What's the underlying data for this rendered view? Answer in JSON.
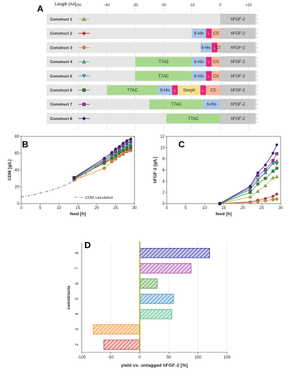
{
  "panels": {
    "A": {
      "letter": "A",
      "axis_label": "Length [AA]",
      "ticks": [
        "-50",
        "-40",
        "-30",
        "-20",
        "-10",
        "0",
        "+10"
      ],
      "constructs": [
        {
          "label": "Construct 1",
          "marker": "triangle",
          "color": "#b5b336",
          "segments": [
            {
              "text": "hFGF-2",
              "kind": "hfgf",
              "from": 0,
              "to": 11
            }
          ]
        },
        {
          "label": "Construct 2",
          "marker": "diamond",
          "color": "#c2282d",
          "segments": [
            {
              "text": "6-His",
              "kind": "his",
              "from": -10,
              "to": -5
            },
            {
              "text": "L",
              "kind": "linker",
              "from": -5,
              "to": -3
            },
            {
              "text": "CS",
              "kind": "cs",
              "from": -3,
              "to": 0
            },
            {
              "text": "hFGF-2",
              "kind": "hfgf",
              "from": 0,
              "to": 11
            }
          ]
        },
        {
          "label": "Construct 3",
          "marker": "circle",
          "color": "#e58a2d",
          "segments": [
            {
              "text": "6-His",
              "kind": "his",
              "from": -7,
              "to": -3
            },
            {
              "text": "L",
              "kind": "linker",
              "from": -3,
              "to": -1
            },
            {
              "text": "CS",
              "kind": "cs",
              "from": -1,
              "to": 0
            },
            {
              "text": "hFGF-2",
              "kind": "hfgf",
              "from": 0,
              "to": 11
            }
          ]
        },
        {
          "label": "Construct 4",
          "marker": "triangle",
          "color": "#3cb37a",
          "segments": [
            {
              "text": "T7A3",
              "kind": "t7",
              "from": -30,
              "to": -10
            },
            {
              "text": "6-His",
              "kind": "his",
              "from": -10,
              "to": -5
            },
            {
              "text": "L",
              "kind": "linker",
              "from": -5,
              "to": -3
            },
            {
              "text": "CS",
              "kind": "cs",
              "from": -3,
              "to": 0
            },
            {
              "text": "hFGF-2",
              "kind": "hfgf",
              "from": 0,
              "to": 11
            }
          ]
        },
        {
          "label": "Construct 5",
          "marker": "triangle-down",
          "color": "#2bb0b0",
          "segments": [
            {
              "text": "T7AC",
              "kind": "t7",
              "from": -30,
              "to": -10
            },
            {
              "text": "6-His",
              "kind": "his",
              "from": -10,
              "to": -5
            },
            {
              "text": "L",
              "kind": "linker",
              "from": -5,
              "to": -3
            },
            {
              "text": "CS",
              "kind": "cs",
              "from": -3,
              "to": 0
            },
            {
              "text": "hFGF-2",
              "kind": "hfgf",
              "from": 0,
              "to": 11
            }
          ]
        },
        {
          "label": "Construct 6",
          "marker": "square",
          "color": "#2e8b2e",
          "segments": [
            {
              "text": "T7AC",
              "kind": "t7",
              "from": -40,
              "to": -22
            },
            {
              "text": "6-His",
              "kind": "his",
              "from": -22,
              "to": -17
            },
            {
              "text": "L",
              "kind": "linker",
              "from": -17,
              "to": -15
            },
            {
              "text": "StrepII",
              "kind": "strep",
              "from": -15,
              "to": -7
            },
            {
              "text": "L",
              "kind": "linker",
              "from": -7,
              "to": -5
            },
            {
              "text": "CS",
              "kind": "cs",
              "from": -5,
              "to": 0
            },
            {
              "text": "hFGF-2",
              "kind": "hfgf",
              "from": 0,
              "to": 11
            }
          ]
        },
        {
          "label": "Construct 7",
          "marker": "square",
          "color": "#9b2fa0",
          "segments": [
            {
              "text": "T7AC",
              "kind": "t7",
              "from": -25,
              "to": -6
            },
            {
              "text": "6-His",
              "kind": "his",
              "from": -6,
              "to": 0
            },
            {
              "text": "hFGF-2",
              "kind": "hfgf",
              "from": 0,
              "to": 11
            }
          ]
        },
        {
          "label": "Construct 8",
          "marker": "diamond",
          "color": "#1f1f80",
          "segments": [
            {
              "text": "T7AC",
              "kind": "t7",
              "from": -19,
              "to": 0
            },
            {
              "text": "hFGF-2",
              "kind": "hfgf",
              "from": 0,
              "to": 11
            }
          ]
        }
      ]
    },
    "B": {
      "letter": "B"
    },
    "C": {
      "letter": "C"
    },
    "D": {
      "letter": "D"
    }
  },
  "colors": {
    "t7": "#a8d88e",
    "his": "#a9c6e8",
    "linker": "#e8237a",
    "cs": "#f5b79a",
    "strep": "#f7e08a",
    "hfgf": "#c8c8c8",
    "row": "#e6e6e6"
  },
  "chart_data": [
    {
      "panel": "B",
      "type": "line",
      "xlabel": "feed [h]",
      "ylabel": "CDM [g/L]",
      "xlim": [
        0,
        30
      ],
      "ylim": [
        0,
        80
      ],
      "xticks": [
        0,
        5,
        10,
        15,
        20,
        25,
        30
      ],
      "yticks": [
        0,
        20,
        40,
        60,
        80
      ],
      "grid": false,
      "legend_placement": "bottom-right",
      "calculated": {
        "name": "CDM calculated",
        "x": [
          0,
          2,
          4,
          6,
          8,
          10,
          12,
          14,
          16,
          18,
          20,
          22,
          24,
          26,
          28,
          30
        ],
        "y": [
          8,
          9.5,
          11.3,
          13.5,
          16,
          19,
          22.6,
          27,
          32,
          38,
          45,
          52,
          59.5,
          67,
          74.5,
          82
        ]
      },
      "series": [
        {
          "name": "Construct 1",
          "marker": "triangle",
          "color": "#b5b336",
          "x": [
            14,
            22,
            24,
            25,
            26,
            27,
            28,
            29
          ],
          "y": [
            30,
            48,
            52,
            55,
            57,
            59,
            62,
            65
          ]
        },
        {
          "name": "Construct 2",
          "marker": "diamond",
          "color": "#c2282d",
          "x": [
            14,
            22,
            24,
            25,
            26,
            27,
            28,
            29
          ],
          "y": [
            29,
            49,
            54,
            57,
            60,
            62,
            64,
            66
          ]
        },
        {
          "name": "Construct 3",
          "marker": "circle",
          "color": "#e58a2d",
          "x": [
            14,
            22,
            24,
            25,
            26,
            27,
            28,
            29
          ],
          "y": [
            28,
            42,
            50,
            53,
            57,
            60,
            62,
            63
          ]
        },
        {
          "name": "Construct 4",
          "marker": "triangle",
          "color": "#3cb37a",
          "x": [
            14,
            22,
            24,
            25,
            26,
            27,
            28,
            29
          ],
          "y": [
            31,
            50,
            56,
            59,
            62,
            65,
            68,
            70
          ]
        },
        {
          "name": "Construct 5",
          "marker": "triangle-down",
          "color": "#2bb0b0",
          "x": [
            14,
            22,
            24,
            25,
            26,
            27,
            28,
            29
          ],
          "y": [
            30,
            51,
            57,
            60,
            63,
            66,
            69,
            71
          ]
        },
        {
          "name": "Construct 6",
          "marker": "square",
          "color": "#2e8b2e",
          "x": [
            14,
            22,
            24,
            25,
            26,
            27,
            28,
            29
          ],
          "y": [
            30,
            48,
            54,
            57,
            61,
            63,
            66,
            68
          ]
        },
        {
          "name": "Construct 7",
          "marker": "square",
          "color": "#9b2fa0",
          "x": [
            14,
            22,
            24,
            25,
            26,
            27,
            28,
            29
          ],
          "y": [
            31,
            52,
            59,
            62,
            66,
            69,
            72,
            74
          ]
        },
        {
          "name": "Construct 8",
          "marker": "diamond",
          "color": "#1f1f80",
          "x": [
            14,
            22,
            24,
            25,
            26,
            27,
            28,
            29
          ],
          "y": [
            31,
            54,
            61,
            65,
            68,
            72,
            75,
            77
          ]
        }
      ]
    },
    {
      "panel": "C",
      "type": "line",
      "xlabel": "feed [h]",
      "ylabel": "hFGF-2 [g/L]",
      "xlim": [
        0,
        30
      ],
      "ylim": [
        0,
        12
      ],
      "xticks": [
        0,
        5,
        10,
        15,
        20,
        25,
        30
      ],
      "yticks": [
        0,
        2,
        4,
        6,
        8,
        10,
        12
      ],
      "grid": false,
      "series": [
        {
          "name": "Construct 1",
          "marker": "triangle",
          "color": "#b5b336",
          "x": [
            14,
            22,
            24,
            26,
            28,
            29
          ],
          "y": [
            0,
            1.2,
            2.2,
            3.2,
            4.6,
            4.8
          ]
        },
        {
          "name": "Construct 2",
          "marker": "diamond",
          "color": "#c2282d",
          "x": [
            14,
            22,
            24,
            26,
            28,
            29
          ],
          "y": [
            0,
            0.3,
            0.6,
            0.9,
            1.3,
            1.7
          ]
        },
        {
          "name": "Construct 3",
          "marker": "circle",
          "color": "#e58a2d",
          "x": [
            14,
            22,
            24,
            26,
            28,
            29
          ],
          "y": [
            0,
            0.2,
            0.35,
            0.5,
            0.7,
            0.8
          ]
        },
        {
          "name": "Construct 4",
          "marker": "triangle",
          "color": "#3cb37a",
          "x": [
            14,
            22,
            24,
            26,
            28,
            29
          ],
          "y": [
            0,
            2.5,
            4.2,
            5.5,
            7.2,
            7.6
          ]
        },
        {
          "name": "Construct 5",
          "marker": "triangle-down",
          "color": "#2bb0b0",
          "x": [
            14,
            22,
            24,
            26,
            28,
            29
          ],
          "y": [
            0,
            2.6,
            4.3,
            5.6,
            7.3,
            7.1
          ]
        },
        {
          "name": "Construct 6",
          "marker": "square",
          "color": "#2e8b2e",
          "x": [
            14,
            22,
            24,
            26,
            28,
            29
          ],
          "y": [
            0,
            2.0,
            3.5,
            4.5,
            5.8,
            6.3
          ]
        },
        {
          "name": "Construct 7",
          "marker": "square",
          "color": "#9b2fa0",
          "x": [
            14,
            22,
            24,
            26,
            28,
            29
          ],
          "y": [
            0,
            2.9,
            5.0,
            6.1,
            7.7,
            8.9
          ]
        },
        {
          "name": "Construct 8",
          "marker": "diamond",
          "color": "#1f1f80",
          "x": [
            14,
            22,
            24,
            26,
            28,
            29
          ],
          "y": [
            0,
            3.1,
            5.5,
            6.9,
            9.0,
            10.5
          ]
        }
      ]
    },
    {
      "panel": "D",
      "type": "bar",
      "orientation": "horizontal",
      "xlabel": "yield vs. untagged hFGF-2 [%]",
      "ylabel": "constructs",
      "xlim": [
        -100,
        150
      ],
      "xticks": [
        -100,
        -50,
        0,
        50,
        100,
        150
      ],
      "grid": true,
      "categories": [
        "8",
        "7",
        "6",
        "5",
        "4",
        "3",
        "2"
      ],
      "values": [
        120,
        88,
        30,
        58,
        55,
        -80,
        -62
      ],
      "colors": [
        "#1f1f80",
        "#9b2fa0",
        "#2e8b2e",
        "#2b7fbf",
        "#3cb37a",
        "#e58a2d",
        "#c2282d"
      ],
      "fill_colors": [
        "#c9c9ef",
        "#ead0ef",
        "#cfe8c8",
        "#c8dff2",
        "#cdeedd",
        "#f9dfb9",
        "#f6d0cd"
      ],
      "fill_pattern": "diagonal-hatch"
    }
  ]
}
